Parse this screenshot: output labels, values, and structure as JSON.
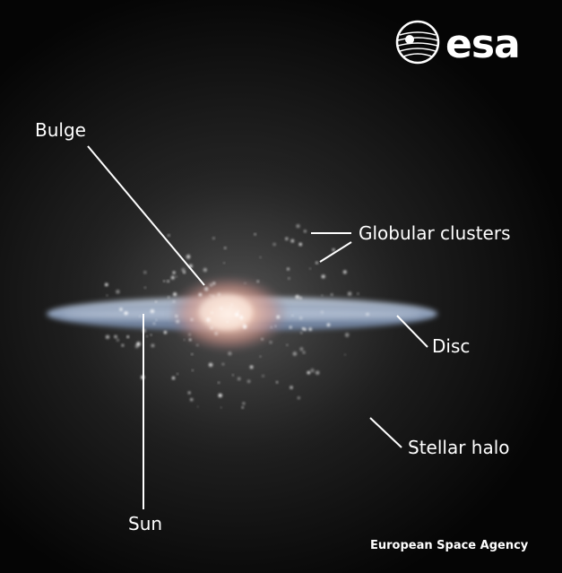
{
  "logo": {
    "text": "esa"
  },
  "labels": {
    "bulge": "Bulge",
    "globular_clusters": "Globular clusters",
    "disc": "Disc",
    "stellar_halo": "Stellar halo",
    "sun": "Sun"
  },
  "credit": "European Space Agency",
  "colors": {
    "background": "#000000",
    "disc": "#9fb0c8",
    "bulge": "#e8b8a0",
    "text": "#ffffff"
  }
}
